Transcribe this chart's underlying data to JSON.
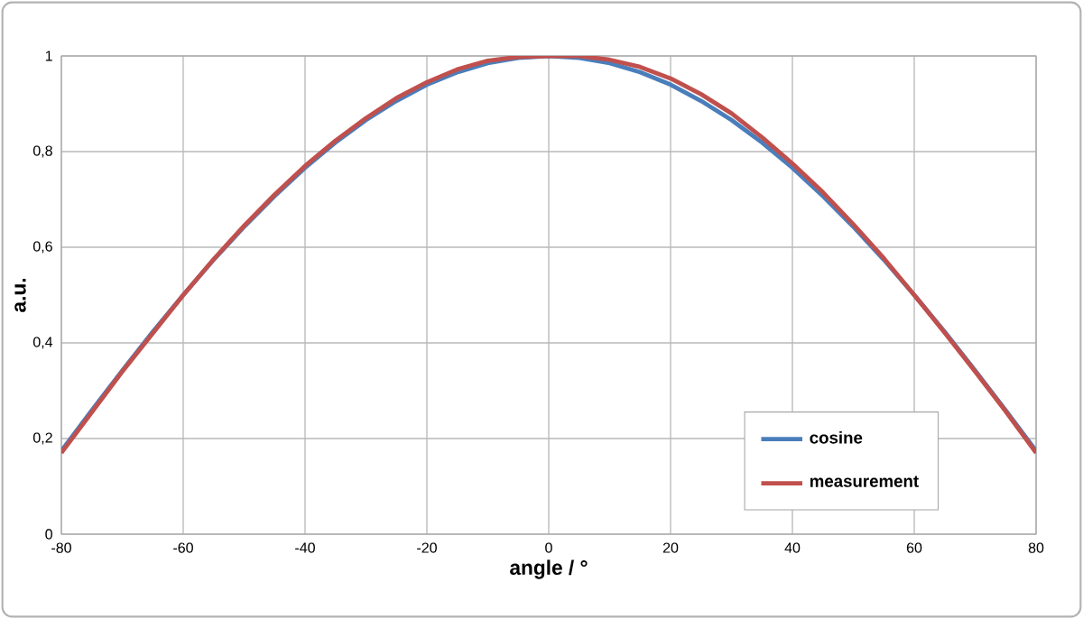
{
  "chart_data": {
    "type": "line",
    "xlabel": "angle / °",
    "ylabel": "a.u.",
    "x": [
      -80,
      -75,
      -70,
      -65,
      -60,
      -55,
      -50,
      -45,
      -40,
      -35,
      -30,
      -25,
      -20,
      -15,
      -10,
      -5,
      0,
      5,
      10,
      15,
      20,
      25,
      30,
      35,
      40,
      45,
      50,
      55,
      60,
      65,
      70,
      75,
      80
    ],
    "series": [
      {
        "name": "cosine",
        "color": "#4a7ebb",
        "values": [
          0.174,
          0.259,
          0.342,
          0.423,
          0.5,
          0.574,
          0.643,
          0.707,
          0.766,
          0.819,
          0.866,
          0.906,
          0.94,
          0.966,
          0.985,
          0.996,
          1,
          0.996,
          0.985,
          0.966,
          0.94,
          0.906,
          0.866,
          0.819,
          0.766,
          0.707,
          0.643,
          0.574,
          0.5,
          0.423,
          0.342,
          0.259,
          0.174
        ]
      },
      {
        "name": "measurement",
        "color": "#c0504d",
        "values": [
          0.17,
          0.255,
          0.34,
          0.42,
          0.5,
          0.575,
          0.645,
          0.71,
          0.77,
          0.823,
          0.87,
          0.912,
          0.945,
          0.972,
          0.99,
          0.998,
          1,
          1,
          0.992,
          0.977,
          0.953,
          0.92,
          0.88,
          0.83,
          0.775,
          0.715,
          0.648,
          0.577,
          0.5,
          0.421,
          0.34,
          0.257,
          0.17
        ]
      }
    ],
    "xlim": [
      -80,
      80
    ],
    "xticks": [
      -80,
      -60,
      -40,
      -20,
      0,
      20,
      40,
      60,
      80
    ],
    "ylim": [
      0,
      1
    ],
    "yticks": [
      0,
      {
        "value": 0.2,
        "label": "0,2"
      },
      {
        "value": 0.4,
        "label": "0,4"
      },
      {
        "value": 0.6,
        "label": "0,6"
      },
      {
        "value": 0.8,
        "label": "0,8"
      },
      1
    ],
    "grid": true,
    "legend": "bottom right",
    "marker": "none",
    "line_style": "solid"
  }
}
